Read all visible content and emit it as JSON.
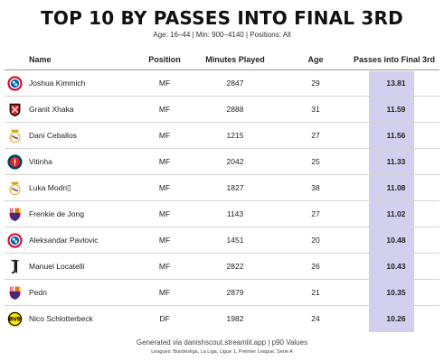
{
  "title": "TOP 10 BY PASSES INTO FINAL 3RD",
  "subtitle": "Age: 16–44 | Min: 900–4140 | Positions: All",
  "columns": {
    "name": "Name",
    "position": "Position",
    "minutes": "Minutes Played",
    "age": "Age",
    "ptf": "Passes into Final 3rd"
  },
  "colors": {
    "highlight_band": "#d3cfee"
  },
  "rows": [
    {
      "club_icon": "bayern-munich-crest-icon",
      "name": "Joshua Kimmich",
      "position": "MF",
      "minutes": "2847",
      "age": "29",
      "ptf": "13.81"
    },
    {
      "club_icon": "bayer-leverkusen-crest-icon",
      "name": "Granit Xhaka",
      "position": "MF",
      "minutes": "2888",
      "age": "31",
      "ptf": "11.59"
    },
    {
      "club_icon": "real-madrid-crest-icon",
      "name": "Dani Ceballos",
      "position": "MF",
      "minutes": "1215",
      "age": "27",
      "ptf": "11.56"
    },
    {
      "club_icon": "psg-crest-icon",
      "name": "Vitinha",
      "position": "MF",
      "minutes": "2042",
      "age": "25",
      "ptf": "11.33"
    },
    {
      "club_icon": "real-madrid-crest-icon",
      "name": "Luka Modri▯",
      "position": "MF",
      "minutes": "1827",
      "age": "38",
      "ptf": "11.08"
    },
    {
      "club_icon": "barcelona-crest-icon",
      "name": "Frenkie de Jong",
      "position": "MF",
      "minutes": "1143",
      "age": "27",
      "ptf": "11.02"
    },
    {
      "club_icon": "bayern-munich-crest-icon",
      "name": "Aleksandar Pavlovic",
      "position": "MF",
      "minutes": "1451",
      "age": "20",
      "ptf": "10.48"
    },
    {
      "club_icon": "juventus-crest-icon",
      "name": "Manuel Locatelli",
      "position": "MF",
      "minutes": "2822",
      "age": "26",
      "ptf": "10.43"
    },
    {
      "club_icon": "barcelona-crest-icon",
      "name": "Pedri",
      "position": "MF",
      "minutes": "2879",
      "age": "21",
      "ptf": "10.35"
    },
    {
      "club_icon": "borussia-dortmund-crest-icon",
      "name": "Nico Schlotterbeck",
      "position": "DF",
      "minutes": "1982",
      "age": "24",
      "ptf": "10.26"
    }
  ],
  "footer": "Generated via danishscout.streamlit.app | p90 Values",
  "footer_leagues": "Leagues: Bundesliga, La Liga, Ligue 1, Premier League, Serie A"
}
